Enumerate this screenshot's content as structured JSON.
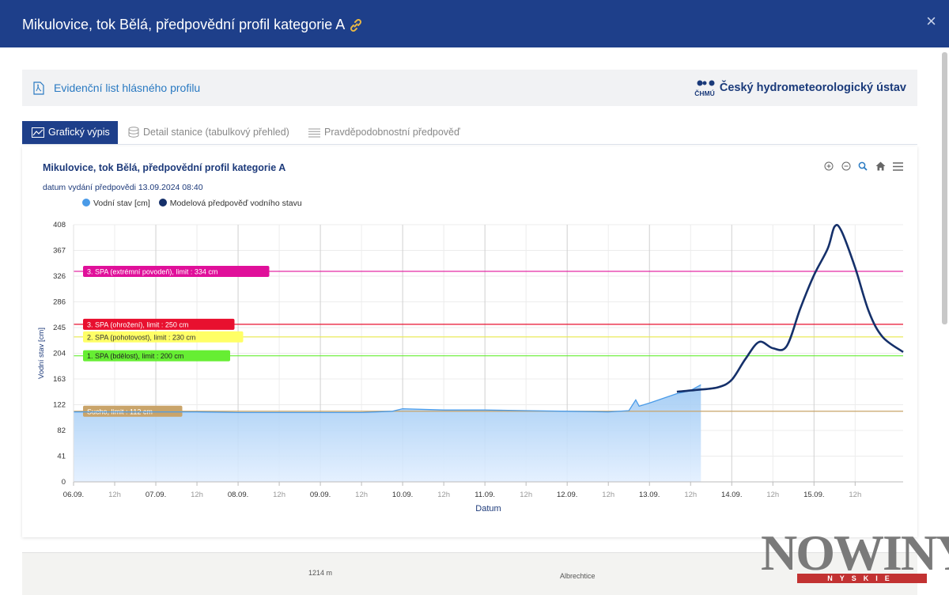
{
  "window": {
    "title": "Mikulovice, tok Bělá, předpovědní profil kategorie A",
    "close": "×"
  },
  "infobar": {
    "link_label": "Evidenční list hlásného profilu",
    "institution": "Český hydrometeorologický ústav",
    "logo_text": "ČHMÚ"
  },
  "tabs": [
    {
      "label": "Grafický výpis",
      "active": true
    },
    {
      "label": "Detail stanice (tabulkový přehled)",
      "active": false
    },
    {
      "label": "Pravděpodobnostní předpověď",
      "active": false
    }
  ],
  "chart_data": {
    "type": "line",
    "title": "Mikulovice, tok Bělá, předpovědní profil kategorie A",
    "subtitle": "datum vydání předpovědi 13.09.2024 08:40",
    "xlabel": "Datum",
    "ylabel": "Vodní stav [cm]",
    "ylim": [
      0,
      408
    ],
    "yticks": [
      "0",
      "41",
      "82",
      "122",
      "163",
      "204",
      "245",
      "286",
      "326",
      "367",
      "408"
    ],
    "xlim": [
      "2024-09-06 00:00",
      "2024-09-16 02:00"
    ],
    "xticks": [
      "06.09.",
      "12h",
      "07.09.",
      "12h",
      "08.09.",
      "12h",
      "09.09.",
      "12h",
      "10.09.",
      "12h",
      "11.09.",
      "12h",
      "12.09.",
      "12h",
      "13.09.",
      "12h",
      "14.09.",
      "12h",
      "15.09.",
      "12h"
    ],
    "grid": true,
    "legend_position": "top-left",
    "series": [
      {
        "name": "Vodní stav [cm]",
        "style": "area",
        "color": "#4a9be8",
        "points": [
          [
            "2024-09-06 00:00",
            111
          ],
          [
            "2024-09-06 12:00",
            111
          ],
          [
            "2024-09-07 00:00",
            111
          ],
          [
            "2024-09-07 12:00",
            111
          ],
          [
            "2024-09-08 00:00",
            110
          ],
          [
            "2024-09-08 12:00",
            110
          ],
          [
            "2024-09-09 00:00",
            110
          ],
          [
            "2024-09-09 12:00",
            110
          ],
          [
            "2024-09-09 21:00",
            112
          ],
          [
            "2024-09-10 00:00",
            116
          ],
          [
            "2024-09-10 12:00",
            114
          ],
          [
            "2024-09-11 00:00",
            114
          ],
          [
            "2024-09-11 12:00",
            113
          ],
          [
            "2024-09-12 00:00",
            112
          ],
          [
            "2024-09-12 12:00",
            111
          ],
          [
            "2024-09-12 18:00",
            113
          ],
          [
            "2024-09-12 20:00",
            130
          ],
          [
            "2024-09-12 21:00",
            120
          ],
          [
            "2024-09-13 00:00",
            125
          ],
          [
            "2024-09-13 08:00",
            140
          ],
          [
            "2024-09-13 12:00",
            145
          ],
          [
            "2024-09-13 15:00",
            154
          ]
        ]
      },
      {
        "name": "Modelová předpověď vodního stavu",
        "style": "line",
        "color": "#15306a",
        "points": [
          [
            "2024-09-13 08:00",
            143
          ],
          [
            "2024-09-13 14:00",
            146
          ],
          [
            "2024-09-13 20:00",
            150
          ],
          [
            "2024-09-14 00:00",
            162
          ],
          [
            "2024-09-14 04:00",
            195
          ],
          [
            "2024-09-14 08:00",
            222
          ],
          [
            "2024-09-14 12:00",
            212
          ],
          [
            "2024-09-14 16:00",
            215
          ],
          [
            "2024-09-14 20:00",
            275
          ],
          [
            "2024-09-15 00:00",
            328
          ],
          [
            "2024-09-15 04:00",
            370
          ],
          [
            "2024-09-15 06:00",
            405
          ],
          [
            "2024-09-15 08:00",
            398
          ],
          [
            "2024-09-15 12:00",
            340
          ],
          [
            "2024-09-15 16:00",
            270
          ],
          [
            "2024-09-15 20:00",
            230
          ],
          [
            "2024-09-16 02:00",
            206
          ]
        ]
      }
    ],
    "thresholds": [
      {
        "label": "3. SPA (extrémní povodeň), limit : 334 cm",
        "value": 334,
        "color": "#e0109a",
        "text_color": "#ffffff"
      },
      {
        "label": "3. SPA (ohrožení), limit : 250 cm",
        "value": 250,
        "color": "#e8102f",
        "text_color": "#ffffff"
      },
      {
        "label": "2. SPA (pohotovost), limit : 230 cm",
        "value": 230,
        "color": "#ffff66",
        "text_color": "#333333"
      },
      {
        "label": "1. SPA (bdělost), limit : 200 cm",
        "value": 200,
        "color": "#66ee33",
        "text_color": "#222222"
      },
      {
        "label": "Sucho, limit : 112 cm",
        "value": 112,
        "color": "#c9a46a",
        "text_color": "#ffffff"
      }
    ]
  },
  "map_labels": {
    "place1": "1214 m",
    "place2": "Albrechtice"
  },
  "watermark": {
    "word": "NOWINY",
    "strip": "NYSKIE"
  },
  "colors": {
    "header": "#1e3f8a",
    "accent": "#2a7ac2",
    "area_fill": "#bcd9f7",
    "forecast_line": "#15306a"
  }
}
